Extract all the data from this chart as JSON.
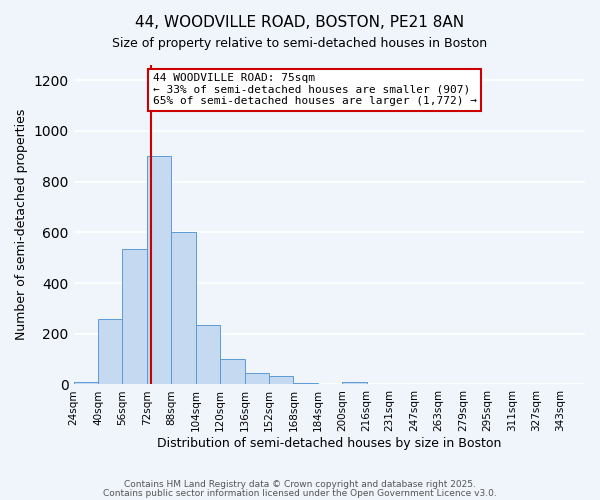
{
  "title1": "44, WOODVILLE ROAD, BOSTON, PE21 8AN",
  "title2": "Size of property relative to semi-detached houses in Boston",
  "xlabel": "Distribution of semi-detached houses by size in Boston",
  "ylabel": "Number of semi-detached properties",
  "bin_labels": [
    "24sqm",
    "40sqm",
    "56sqm",
    "72sqm",
    "88sqm",
    "104sqm",
    "120sqm",
    "136sqm",
    "152sqm",
    "168sqm",
    "184sqm",
    "200sqm",
    "216sqm",
    "231sqm",
    "247sqm",
    "263sqm",
    "279sqm",
    "295sqm",
    "311sqm",
    "327sqm",
    "343sqm"
  ],
  "bin_edges": [
    24,
    40,
    56,
    72,
    88,
    104,
    120,
    136,
    152,
    168,
    184,
    200,
    216,
    231,
    247,
    263,
    279,
    295,
    311,
    327,
    343
  ],
  "bar_heights": [
    10,
    260,
    535,
    900,
    600,
    235,
    100,
    47,
    33,
    5,
    0,
    10,
    0,
    0,
    0,
    0,
    0,
    0,
    0,
    0
  ],
  "bar_color": "#c5d9f0",
  "bar_edge_color": "#5b9bd5",
  "vline_x": 75,
  "vline_color": "#cc0000",
  "annotation_text": "44 WOODVILLE ROAD: 75sqm\n← 33% of semi-detached houses are smaller (907)\n65% of semi-detached houses are larger (1,772) →",
  "annotation_box_color": "#ffffff",
  "annotation_box_edge": "#cc0000",
  "ylim": [
    0,
    1260
  ],
  "yticks": [
    0,
    200,
    400,
    600,
    800,
    1000,
    1200
  ],
  "footer1": "Contains HM Land Registry data © Crown copyright and database right 2025.",
  "footer2": "Contains public sector information licensed under the Open Government Licence v3.0.",
  "bg_color": "#f0f4fb",
  "grid_color": "#ffffff"
}
